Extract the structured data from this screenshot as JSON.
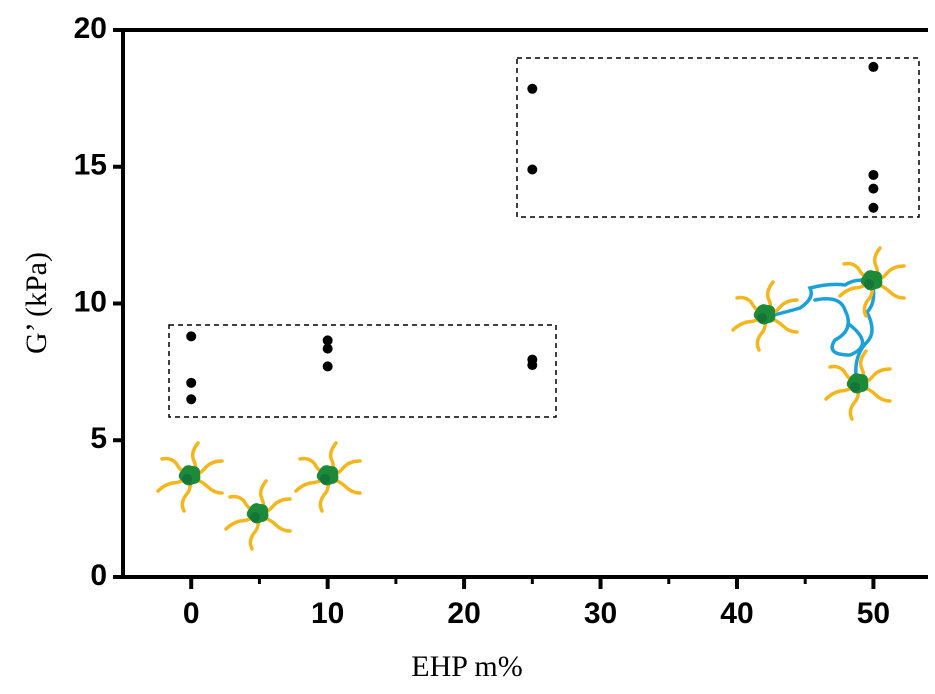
{
  "chart_data": {
    "type": "scatter",
    "x": [
      0,
      0,
      0,
      10,
      10,
      10,
      25,
      25,
      25,
      25,
      50,
      50,
      50,
      50
    ],
    "values": [
      8.8,
      7.1,
      6.5,
      8.65,
      8.35,
      7.7,
      7.95,
      7.75,
      17.85,
      14.9,
      18.65,
      14.7,
      14.2,
      13.5
    ],
    "color": "#000000",
    "xlim": [
      -5,
      54
    ],
    "xticks": [
      0,
      10,
      20,
      30,
      40,
      50
    ],
    "xminorticks": [
      5,
      15,
      25,
      35,
      45
    ],
    "ylim": [
      0,
      20
    ],
    "yticks": [
      0,
      5,
      10,
      15,
      20
    ],
    "xlabel": "EHP m%",
    "ylabel": "G’ (kPa)"
  }
}
